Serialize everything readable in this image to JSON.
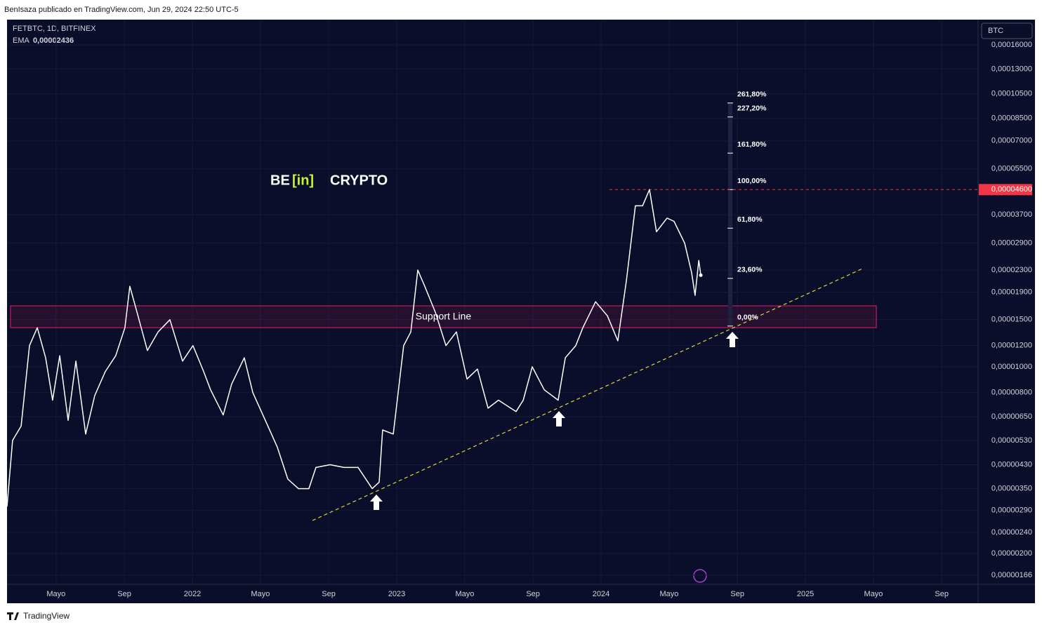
{
  "header": {
    "attribution": "BenIsaza publicado en TradingView.com, Jun 29, 2024 22:50 UTC-5",
    "footer": "TradingView"
  },
  "chart_data": {
    "type": "line",
    "symbol": "FETBTC, 1D, BITFINEX",
    "indicator": "EMA",
    "indicator_value": "0,00002436",
    "currency": "BTC",
    "logo": {
      "left": "BE",
      "middle": "[in]",
      "right": "CRYPTO"
    },
    "log_scale": true,
    "grid": true,
    "x": [
      2021.093,
      2021.12,
      2021.162,
      2021.203,
      2021.241,
      2021.282,
      2021.316,
      2021.351,
      2021.392,
      2021.43,
      2021.478,
      2021.522,
      2021.574,
      2021.625,
      2021.67,
      2021.694,
      2021.729,
      2021.78,
      2021.832,
      2021.89,
      2021.952,
      2022.003,
      2022.055,
      2022.089,
      2022.151,
      2022.192,
      2022.254,
      2022.296,
      2022.357,
      2022.416,
      2022.467,
      2022.519,
      2022.57,
      2022.605,
      2022.674,
      2022.742,
      2022.811,
      2022.88,
      2022.914,
      2022.931,
      2022.983,
      2023.034,
      2023.069,
      2023.103,
      2023.137,
      2023.189,
      2023.241,
      2023.292,
      2023.344,
      2023.395,
      2023.447,
      2023.498,
      2023.584,
      2023.619,
      2023.663,
      2023.722,
      2023.79,
      2023.825,
      2023.876,
      2023.911,
      2023.973,
      2024.031,
      2024.082,
      2024.124,
      2024.168,
      2024.203,
      2024.237,
      2024.271,
      2024.323,
      2024.357,
      2024.409,
      2024.443,
      2024.46,
      2024.478,
      2024.488
    ],
    "series": [
      {
        "name": "FETBTC",
        "color": "#ffffff",
        "values": [
          3e-06,
          5.3e-06,
          6e-06,
          1.2e-05,
          1.4e-05,
          1.08e-05,
          7.5e-06,
          1.1e-05,
          6.3e-06,
          1.05e-05,
          5.6e-06,
          7.8e-06,
          9.6e-06,
          1.1e-05,
          1.4e-05,
          2e-05,
          1.6e-05,
          1.15e-05,
          1.35e-05,
          1.5e-05,
          1.05e-05,
          1.2e-05,
          9.6e-06,
          8.2e-06,
          6.6e-06,
          8.6e-06,
          1.08e-05,
          8e-06,
          6.3e-06,
          5e-06,
          3.8e-06,
          3.5e-06,
          3.5e-06,
          4.2e-06,
          4.3e-06,
          4.2e-06,
          4.2e-06,
          3.5e-06,
          3.7e-06,
          5.8e-06,
          5.6e-06,
          1.2e-05,
          1.35e-05,
          2.3e-05,
          2e-05,
          1.6e-05,
          1.2e-05,
          1.35e-05,
          9e-06,
          9.8e-06,
          7e-06,
          7.5e-06,
          6.8e-06,
          7.5e-06,
          1e-05,
          8.2e-06,
          7.5e-06,
          1.08e-05,
          1.2e-05,
          1.4e-05,
          1.75e-05,
          1.55e-05,
          1.25e-05,
          2.1e-05,
          4e-05,
          4e-05,
          4.6e-05,
          3.2e-05,
          3.6e-05,
          3.5e-05,
          2.9e-05,
          2.25e-05,
          1.85e-05,
          2.5e-05,
          2.2e-05
        ]
      }
    ],
    "xlim": [
      2021.093,
      2025.845
    ],
    "xticks": [
      {
        "value": 2021.333,
        "label": "Mayo"
      },
      {
        "value": 2021.667,
        "label": "Sep"
      },
      2022,
      {
        "value": 2022.333,
        "label": "Mayo"
      },
      {
        "value": 2022.667,
        "label": "Sep"
      },
      2023,
      {
        "value": 2023.333,
        "label": "Mayo"
      },
      {
        "value": 2023.667,
        "label": "Sep"
      },
      2024,
      {
        "value": 2024.333,
        "label": "Mayo"
      },
      {
        "value": 2024.667,
        "label": "Sep"
      },
      2025,
      {
        "value": 2025.333,
        "label": "Mayo"
      },
      {
        "value": 2025.667,
        "label": "Sep"
      }
    ],
    "ylim": [
      1.535e-06,
      0.0001989
    ],
    "yticks": [
      {
        "value": 0.00016,
        "label": "0,00016000"
      },
      {
        "value": 0.00013,
        "label": "0,00013000"
      },
      {
        "value": 0.000105,
        "label": "0,00010500"
      },
      {
        "value": 8.5e-05,
        "label": "0,00008500"
      },
      {
        "value": 7e-05,
        "label": "0,00007000"
      },
      {
        "value": 5.5e-05,
        "label": "0,00005500"
      },
      {
        "value": 3.7e-05,
        "label": "0,00003700"
      },
      {
        "value": 2.9e-05,
        "label": "0,00002900"
      },
      {
        "value": 2.3e-05,
        "label": "0,00002300"
      },
      {
        "value": 1.9e-05,
        "label": "0,00001900"
      },
      {
        "value": 1.5e-05,
        "label": "0,00001500"
      },
      {
        "value": 1.2e-05,
        "label": "0,00001200"
      },
      {
        "value": 1e-05,
        "label": "0,00001000"
      },
      {
        "value": 8e-06,
        "label": "0,00000800"
      },
      {
        "value": 6.5e-06,
        "label": "0,00000650"
      },
      {
        "value": 5.3e-06,
        "label": "0,00000530"
      },
      {
        "value": 4.3e-06,
        "label": "0,00000430"
      },
      {
        "value": 3.5e-06,
        "label": "0,00000350"
      },
      {
        "value": 2.9e-06,
        "label": "0,00000290"
      },
      {
        "value": 2.4e-06,
        "label": "0,00000240"
      },
      {
        "value": 2e-06,
        "label": "0,00000200"
      },
      {
        "value": 1.66e-06,
        "label": "0,00000166"
      }
    ],
    "resistance": {
      "value": 4.6e-05,
      "label": "0,00004600",
      "x_start": 2024.041,
      "color": "#f23645"
    },
    "support_zone": {
      "label": "Support Line",
      "ylim": [
        1.4e-05,
        1.69e-05
      ],
      "xlim": [
        2021.11,
        2025.347
      ],
      "color": "#e91e63"
    },
    "trendline": {
      "x": [
        2022.588,
        2025.285
      ],
      "values": [
        2.66e-06,
        2.34e-05
      ],
      "color": "#e8d535"
    },
    "fibonacci": [
      {
        "value": 261.8,
        "label": "261,80%",
        "price": 9.7e-05
      },
      {
        "value": 227.2,
        "label": "227,20%",
        "price": 8.6e-05
      },
      {
        "value": 161.8,
        "label": "161,80%",
        "price": 6.3e-05
      },
      {
        "value": 100,
        "label": "100,00%",
        "price": 4.6e-05
      },
      {
        "value": 61.8,
        "label": "61,80%",
        "price": 3.3e-05
      },
      {
        "value": 23.6,
        "label": "23,60%",
        "price": 2.14e-05
      },
      {
        "value": 0,
        "label": "0,00%",
        "price": 1.42e-05
      }
    ]
  }
}
